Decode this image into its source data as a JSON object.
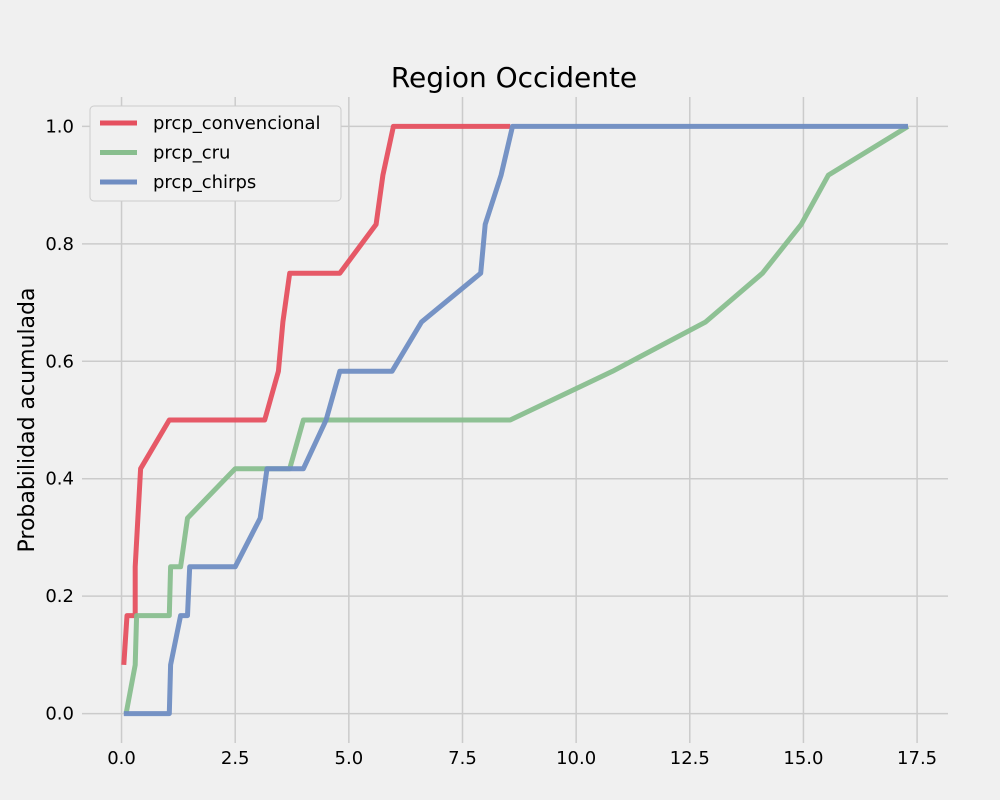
{
  "chart_data": {
    "type": "line",
    "title": "Region Occidente",
    "xlabel": "",
    "ylabel": "Probabilidad acumulada",
    "xlim": [
      -0.87,
      18.18
    ],
    "ylim": [
      -0.05,
      1.05
    ],
    "xticks": [
      0.0,
      2.5,
      5.0,
      7.5,
      10.0,
      12.5,
      15.0,
      17.5
    ],
    "xtick_labels": [
      "0.0",
      "2.5",
      "5.0",
      "7.5",
      "10.0",
      "12.5",
      "15.0",
      "17.5"
    ],
    "yticks": [
      0.0,
      0.2,
      0.4,
      0.6,
      0.8,
      1.0
    ],
    "ytick_labels": [
      "0.0",
      "0.2",
      "0.4",
      "0.6",
      "0.8",
      "1.0"
    ],
    "grid": true,
    "legend_position": "upper-left",
    "series": [
      {
        "name": "prcp_convencional",
        "color": "#e5505f",
        "x": [
          0.05,
          0.12,
          0.3,
          0.3,
          0.42,
          1.05,
          3.15,
          3.45,
          3.55,
          3.7,
          4.8,
          5.6,
          5.75,
          5.98,
          8.55
        ],
        "y": [
          0.083,
          0.167,
          0.167,
          0.25,
          0.417,
          0.5,
          0.5,
          0.583,
          0.667,
          0.75,
          0.75,
          0.833,
          0.917,
          1.0,
          1.0
        ]
      },
      {
        "name": "prcp_cru",
        "color": "#88be8e",
        "x": [
          0.1,
          0.3,
          0.33,
          1.05,
          1.08,
          1.3,
          1.45,
          2.5,
          3.7,
          4.0,
          8.55,
          10.8,
          12.85,
          14.1,
          14.95,
          15.55,
          17.3
        ],
        "y": [
          0.0,
          0.083,
          0.167,
          0.167,
          0.25,
          0.25,
          0.333,
          0.417,
          0.417,
          0.5,
          0.5,
          0.583,
          0.667,
          0.75,
          0.833,
          0.917,
          1.0
        ]
      },
      {
        "name": "prcp_chirps",
        "color": "#6f8dc2",
        "x": [
          0.05,
          1.05,
          1.08,
          1.3,
          1.45,
          1.5,
          2.5,
          3.05,
          3.2,
          4.0,
          4.5,
          4.8,
          5.95,
          6.6,
          7.9,
          8.0,
          8.35,
          8.6,
          17.3
        ],
        "y": [
          0.0,
          0.0,
          0.083,
          0.167,
          0.167,
          0.25,
          0.25,
          0.333,
          0.417,
          0.417,
          0.5,
          0.583,
          0.583,
          0.667,
          0.75,
          0.833,
          0.917,
          1.0,
          1.0
        ]
      }
    ]
  }
}
